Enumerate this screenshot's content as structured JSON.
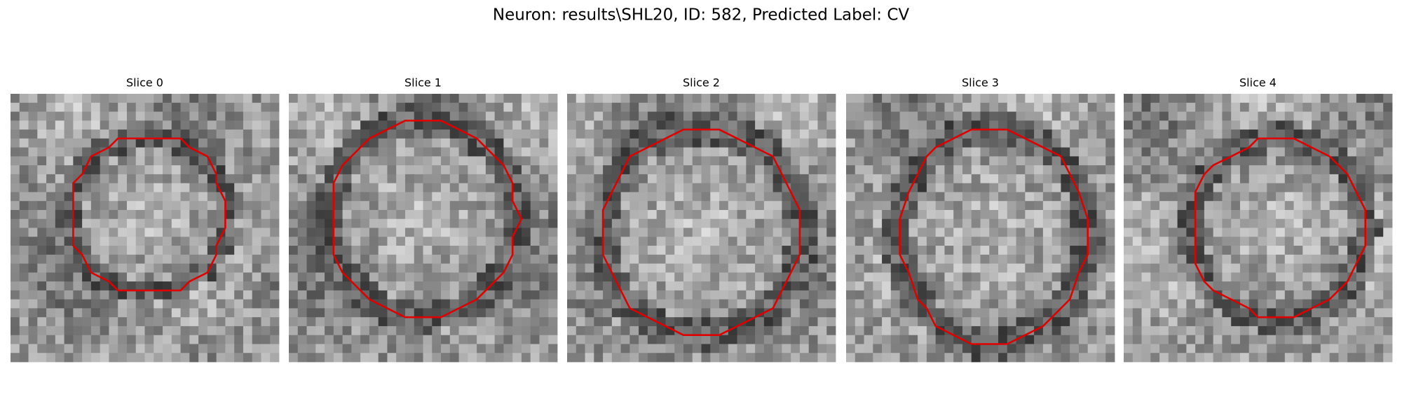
{
  "figure": {
    "title": "Neuron: results\\SHL20, ID: 582, Predicted Label: CV",
    "panels": [
      {
        "title": "Slice 0"
      },
      {
        "title": "Slice 1"
      },
      {
        "title": "Slice 2"
      },
      {
        "title": "Slice 3"
      },
      {
        "title": "Slice 4"
      }
    ]
  }
}
